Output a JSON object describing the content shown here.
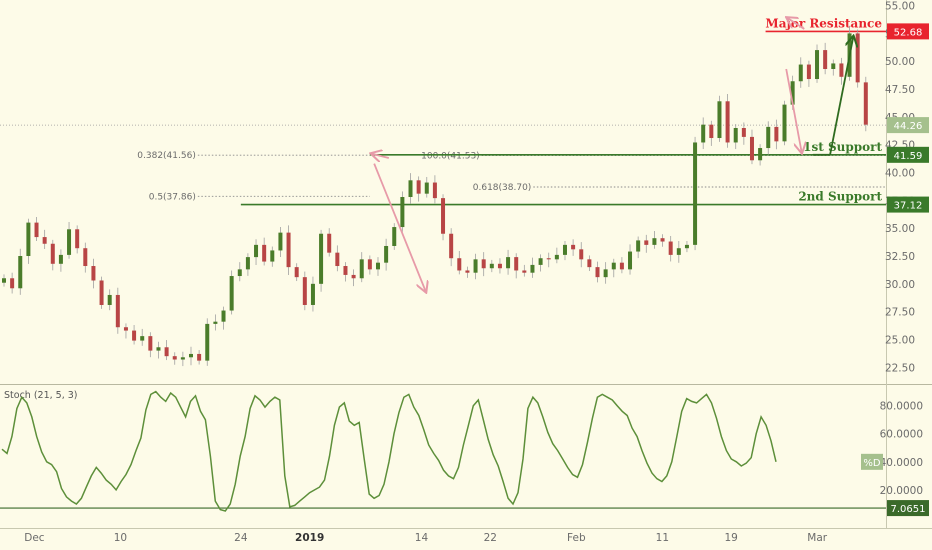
{
  "chart_data": {
    "type": "candlestick",
    "instrument_note": "",
    "price_axis": {
      "ticks": [
        "55.00",
        "52.50",
        "50.00",
        "47.50",
        "45.00",
        "42.50",
        "40.00",
        "37.50",
        "35.00",
        "32.50",
        "30.00",
        "27.50",
        "25.00",
        "22.50"
      ],
      "ylim": [
        21,
        55.5
      ]
    },
    "date_axis": {
      "labels": [
        {
          "text": "Dec",
          "day": 4,
          "bold": false
        },
        {
          "text": "10",
          "day": 14,
          "bold": false
        },
        {
          "text": "24",
          "day": 28,
          "bold": false
        },
        {
          "text": "2019",
          "day": 36,
          "bold": true
        },
        {
          "text": "14",
          "day": 49,
          "bold": false
        },
        {
          "text": "22",
          "day": 57,
          "bold": false
        },
        {
          "text": "Feb",
          "day": 67,
          "bold": false
        },
        {
          "text": "11",
          "day": 77,
          "bold": false
        },
        {
          "text": "19",
          "day": 85,
          "bold": false
        },
        {
          "text": "Mar",
          "day": 95,
          "bold": false
        }
      ],
      "xlim": [
        0,
        103
      ]
    },
    "levels": [
      {
        "label": "Major Resistance",
        "value": 52.68,
        "badge": "52.68",
        "color": "#e8242e",
        "x_start_day": 89
      },
      {
        "label": "1st Support",
        "value": 41.59,
        "badge": "41.59",
        "color": "#3a7a2a",
        "x_start_day": 43
      },
      {
        "label": "2nd Support",
        "value": 37.12,
        "badge": "37.12",
        "color": "#3a7a2a",
        "x_start_day": 28
      }
    ],
    "current_price": {
      "value": 44.26,
      "badge": "44.26"
    },
    "fib_levels": [
      {
        "label": "0.382(41.56)",
        "value": 41.56,
        "x_start_day": 23,
        "x_end_day": 43
      },
      {
        "label": "0.5(37.86)",
        "value": 37.86,
        "x_start_day": 23,
        "x_end_day": 43
      },
      {
        "label": "100.0(41.53)",
        "value": 41.53,
        "x_start_day": 56,
        "x_end_day": 103
      },
      {
        "label": "0.618(38.70)",
        "value": 38.7,
        "x_start_day": 62,
        "x_end_day": 103
      }
    ],
    "candles_close": [
      30.5,
      29.6,
      32.5,
      35.5,
      34.2,
      33.6,
      31.8,
      32.6,
      34.9,
      33.2,
      31.6,
      30.3,
      28.1,
      29.0,
      26.1,
      25.8,
      24.9,
      25.3,
      24.0,
      24.3,
      23.5,
      23.2,
      23.4,
      23.7,
      23.1,
      26.4,
      26.6,
      27.6,
      30.7,
      31.3,
      32.4,
      33.5,
      32.0,
      33.0,
      34.6,
      31.5,
      30.6,
      28.1,
      30.0,
      34.5,
      32.8,
      31.6,
      30.8,
      30.5,
      32.2,
      31.3,
      31.9,
      33.4,
      35.1,
      37.8,
      39.3,
      38.1,
      39.1,
      37.7,
      34.5,
      32.3,
      31.2,
      31.0,
      32.2,
      31.4,
      31.8,
      31.4,
      32.4,
      31.2,
      31.0,
      31.7,
      32.3,
      32.2,
      32.6,
      33.5,
      33.1,
      32.2,
      31.5,
      30.6,
      31.3,
      31.9,
      31.3,
      32.9,
      33.9,
      33.5,
      34.1,
      33.8,
      32.6,
      33.2,
      33.5,
      42.7,
      44.3,
      43.1,
      46.4,
      42.7,
      44.0,
      43.2,
      41.1,
      42.2,
      44.1,
      42.8,
      46.1,
      48.2,
      49.7,
      48.4,
      51.0,
      49.3,
      49.8,
      48.6,
      52.5,
      48.1,
      44.3
    ],
    "stochastic": {
      "title": "Stoch (21, 5, 3)",
      "ticks": [
        "80.0000",
        "60.0000",
        "40.0000",
        "20.0000"
      ],
      "ylim": [
        0,
        94
      ],
      "badge_label": "%D",
      "badge_value": 40,
      "low_line": {
        "value": 7.0651,
        "badge": "7.0651"
      },
      "values": [
        49,
        46,
        58,
        78,
        86,
        82,
        72,
        58,
        47,
        40,
        38,
        33,
        21,
        15,
        12,
        10,
        14,
        22,
        30,
        36,
        32,
        27,
        24,
        20,
        26,
        31,
        38,
        48,
        57,
        77,
        88,
        90,
        86,
        83,
        89,
        86,
        79,
        72,
        83,
        87,
        76,
        70,
        44,
        12,
        6,
        5,
        10,
        24,
        44,
        58,
        78,
        87,
        84,
        79,
        83,
        86,
        84,
        30,
        8,
        9,
        12,
        15,
        18,
        20,
        22,
        27,
        44,
        66,
        79,
        82,
        69,
        66,
        68,
        42,
        17,
        14,
        16,
        24,
        40,
        60,
        75,
        86,
        88,
        79,
        73,
        63,
        52,
        46,
        41,
        34,
        30,
        28,
        36,
        52,
        66,
        80,
        84,
        70,
        56,
        45,
        37,
        26,
        14,
        10,
        18,
        42,
        78,
        86,
        82,
        72,
        61,
        53,
        48,
        42,
        36,
        31,
        29,
        38,
        54,
        71,
        86,
        88,
        86,
        84,
        80,
        76,
        73,
        64,
        58,
        48,
        39,
        32,
        28,
        26,
        30,
        40,
        58,
        76,
        85,
        83,
        82,
        85,
        88,
        82,
        71,
        58,
        48,
        42,
        40,
        37,
        39,
        43,
        60,
        72,
        66,
        55,
        40
      ]
    }
  }
}
